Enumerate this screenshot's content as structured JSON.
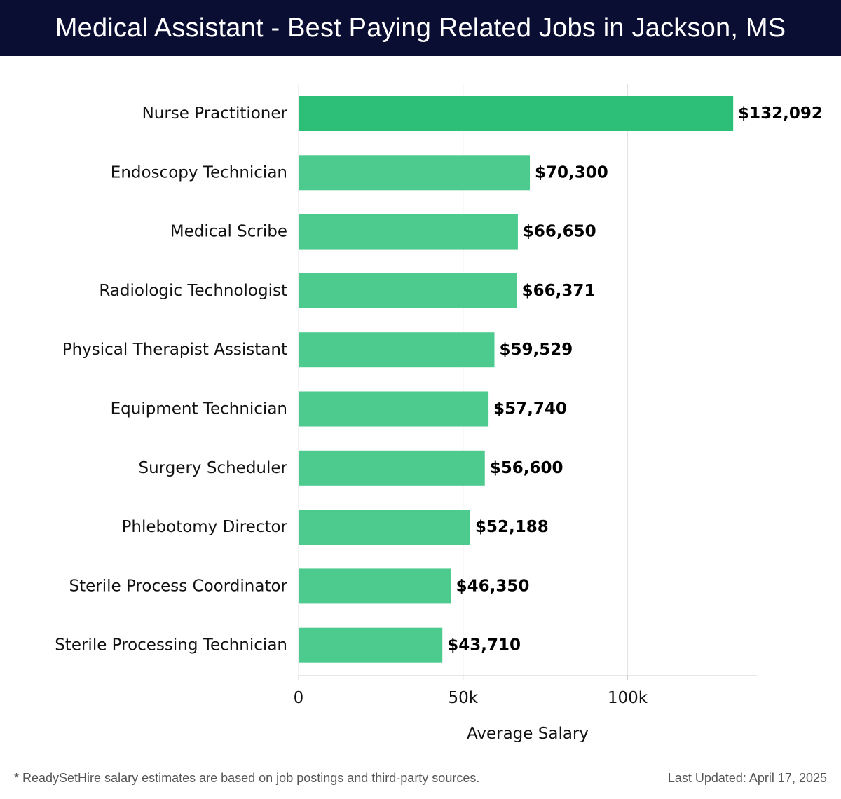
{
  "header": {
    "title": "Medical Assistant - Best Paying Related Jobs in Jackson, MS"
  },
  "chart_data": {
    "type": "bar",
    "orientation": "horizontal",
    "title": "Medical Assistant - Best Paying Related Jobs in Jackson, MS",
    "xlabel": "Average Salary",
    "ylabel": "",
    "xlim": [
      0,
      139000
    ],
    "x_ticks": [
      {
        "value": 0,
        "label": "0"
      },
      {
        "value": 50000,
        "label": "50k"
      },
      {
        "value": 100000,
        "label": "100k"
      }
    ],
    "grid": true,
    "categories": [
      "Nurse Practitioner",
      "Endoscopy Technician",
      "Medical Scribe",
      "Radiologic Technologist",
      "Physical Therapist Assistant",
      "Equipment Technician",
      "Surgery Scheduler",
      "Phlebotomy Director",
      "Sterile Process Coordinator",
      "Sterile Processing Technician"
    ],
    "values": [
      132092,
      70300,
      66650,
      66371,
      59529,
      57740,
      56600,
      52188,
      46350,
      43710
    ],
    "value_labels": [
      "$132,092",
      "$70,300",
      "$66,650",
      "$66,371",
      "$59,529",
      "$57,740",
      "$56,600",
      "$52,188",
      "$46,350",
      "$43,710"
    ],
    "colors": {
      "top_bar": "#2dbf78",
      "bar": "#4dca8e",
      "grid": "#e3e3e3",
      "axis": "#cccccc",
      "text": "#111111"
    }
  },
  "footer": {
    "note": "* ReadySetHire salary estimates are based on job postings and third-party sources.",
    "updated": "Last Updated: April 17, 2025"
  }
}
